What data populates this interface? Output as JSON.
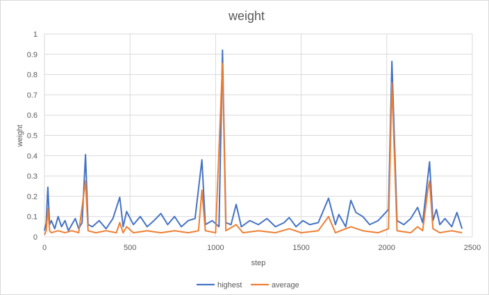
{
  "chart_data": {
    "type": "line",
    "title": "weight",
    "xlabel": "step",
    "ylabel": "weight",
    "xlim": [
      0,
      2500
    ],
    "ylim": [
      0,
      1
    ],
    "xticks": [
      "0",
      "500",
      "1000",
      "1500",
      "2000",
      "2500"
    ],
    "yticks": [
      "0",
      "0.1",
      "0.2",
      "0.3",
      "0.4",
      "0.5",
      "0.6",
      "0.7",
      "0.8",
      "0.9",
      "1"
    ],
    "grid": true,
    "legend_position": "bottom",
    "series": [
      {
        "name": "highest",
        "color": "#4472C4",
        "points": [
          [
            0,
            0.03
          ],
          [
            10,
            0.07
          ],
          [
            20,
            0.245
          ],
          [
            30,
            0.06
          ],
          [
            40,
            0.08
          ],
          [
            60,
            0.04
          ],
          [
            80,
            0.1
          ],
          [
            100,
            0.05
          ],
          [
            120,
            0.08
          ],
          [
            140,
            0.03
          ],
          [
            160,
            0.06
          ],
          [
            180,
            0.09
          ],
          [
            200,
            0.04
          ],
          [
            220,
            0.07
          ],
          [
            240,
            0.405
          ],
          [
            255,
            0.06
          ],
          [
            280,
            0.05
          ],
          [
            320,
            0.08
          ],
          [
            360,
            0.04
          ],
          [
            400,
            0.09
          ],
          [
            440,
            0.195
          ],
          [
            460,
            0.05
          ],
          [
            480,
            0.125
          ],
          [
            520,
            0.06
          ],
          [
            560,
            0.1
          ],
          [
            600,
            0.05
          ],
          [
            640,
            0.08
          ],
          [
            680,
            0.115
          ],
          [
            720,
            0.06
          ],
          [
            760,
            0.1
          ],
          [
            800,
            0.05
          ],
          [
            840,
            0.08
          ],
          [
            880,
            0.09
          ],
          [
            920,
            0.38
          ],
          [
            940,
            0.06
          ],
          [
            980,
            0.08
          ],
          [
            1020,
            0.05
          ],
          [
            1040,
            0.92
          ],
          [
            1060,
            0.07
          ],
          [
            1090,
            0.06
          ],
          [
            1120,
            0.16
          ],
          [
            1150,
            0.05
          ],
          [
            1200,
            0.08
          ],
          [
            1250,
            0.06
          ],
          [
            1300,
            0.09
          ],
          [
            1350,
            0.05
          ],
          [
            1400,
            0.07
          ],
          [
            1430,
            0.095
          ],
          [
            1470,
            0.05
          ],
          [
            1510,
            0.08
          ],
          [
            1550,
            0.06
          ],
          [
            1600,
            0.07
          ],
          [
            1660,
            0.19
          ],
          [
            1700,
            0.06
          ],
          [
            1720,
            0.11
          ],
          [
            1760,
            0.05
          ],
          [
            1790,
            0.18
          ],
          [
            1820,
            0.12
          ],
          [
            1860,
            0.1
          ],
          [
            1900,
            0.06
          ],
          [
            1950,
            0.08
          ],
          [
            2010,
            0.135
          ],
          [
            2030,
            0.865
          ],
          [
            2060,
            0.08
          ],
          [
            2100,
            0.06
          ],
          [
            2140,
            0.09
          ],
          [
            2180,
            0.145
          ],
          [
            2210,
            0.07
          ],
          [
            2250,
            0.37
          ],
          [
            2270,
            0.08
          ],
          [
            2290,
            0.135
          ],
          [
            2310,
            0.06
          ],
          [
            2340,
            0.09
          ],
          [
            2380,
            0.05
          ],
          [
            2410,
            0.12
          ],
          [
            2440,
            0.04
          ]
        ]
      },
      {
        "name": "average",
        "color": "#ED7D31",
        "points": [
          [
            0,
            0.01
          ],
          [
            10,
            0.03
          ],
          [
            20,
            0.14
          ],
          [
            30,
            0.03
          ],
          [
            40,
            0.02
          ],
          [
            80,
            0.03
          ],
          [
            120,
            0.02
          ],
          [
            160,
            0.03
          ],
          [
            200,
            0.02
          ],
          [
            240,
            0.275
          ],
          [
            255,
            0.03
          ],
          [
            300,
            0.02
          ],
          [
            360,
            0.03
          ],
          [
            420,
            0.02
          ],
          [
            440,
            0.07
          ],
          [
            460,
            0.02
          ],
          [
            480,
            0.05
          ],
          [
            520,
            0.02
          ],
          [
            600,
            0.03
          ],
          [
            680,
            0.02
          ],
          [
            760,
            0.03
          ],
          [
            840,
            0.02
          ],
          [
            900,
            0.03
          ],
          [
            920,
            0.23
          ],
          [
            940,
            0.03
          ],
          [
            1000,
            0.02
          ],
          [
            1040,
            0.855
          ],
          [
            1060,
            0.03
          ],
          [
            1120,
            0.06
          ],
          [
            1160,
            0.02
          ],
          [
            1250,
            0.03
          ],
          [
            1350,
            0.02
          ],
          [
            1430,
            0.04
          ],
          [
            1500,
            0.02
          ],
          [
            1600,
            0.03
          ],
          [
            1660,
            0.1
          ],
          [
            1700,
            0.02
          ],
          [
            1790,
            0.05
          ],
          [
            1860,
            0.03
          ],
          [
            1950,
            0.02
          ],
          [
            2010,
            0.04
          ],
          [
            2030,
            0.76
          ],
          [
            2060,
            0.03
          ],
          [
            2140,
            0.02
          ],
          [
            2180,
            0.05
          ],
          [
            2210,
            0.03
          ],
          [
            2240,
            0.23
          ],
          [
            2250,
            0.275
          ],
          [
            2270,
            0.04
          ],
          [
            2310,
            0.02
          ],
          [
            2380,
            0.03
          ],
          [
            2440,
            0.02
          ]
        ]
      }
    ]
  }
}
